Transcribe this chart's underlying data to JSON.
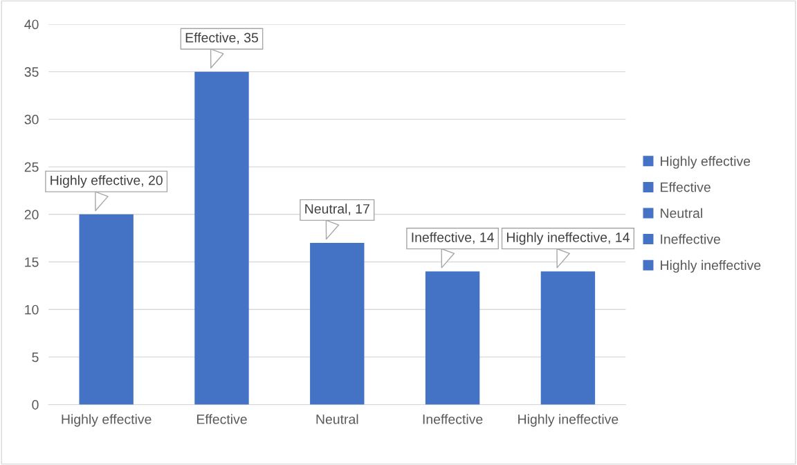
{
  "chart_data": {
    "type": "bar",
    "categories": [
      "Highly effective",
      "Effective",
      "Neutral",
      "Ineffective",
      "Highly ineffective"
    ],
    "series": [
      {
        "name": "Highly effective",
        "color": "#4472c4",
        "values": [
          20,
          null,
          null,
          null,
          null
        ],
        "value_labels": [
          "Highly effective, 20",
          null,
          null,
          null,
          null
        ]
      },
      {
        "name": "Effective",
        "color": "#4472c4",
        "values": [
          null,
          35,
          null,
          null,
          null
        ],
        "value_labels": [
          null,
          "Effective, 35",
          null,
          null,
          null
        ]
      },
      {
        "name": "Neutral",
        "color": "#4472c4",
        "values": [
          null,
          null,
          17,
          null,
          null
        ],
        "value_labels": [
          null,
          null,
          "Neutral, 17",
          null,
          null
        ]
      },
      {
        "name": "Ineffective",
        "color": "#4472c4",
        "values": [
          null,
          null,
          null,
          14,
          null
        ],
        "value_labels": [
          null,
          null,
          null,
          "Ineffective, 14",
          null
        ]
      },
      {
        "name": "Highly ineffective",
        "color": "#4472c4",
        "values": [
          null,
          null,
          null,
          null,
          14
        ],
        "value_labels": [
          null,
          null,
          null,
          null,
          "Highly ineffective, 14"
        ]
      }
    ],
    "ylim": [
      0,
      40
    ],
    "yticks": [
      0,
      5,
      10,
      15,
      20,
      25,
      30,
      35,
      40
    ],
    "grid": "y",
    "legend": "right"
  }
}
